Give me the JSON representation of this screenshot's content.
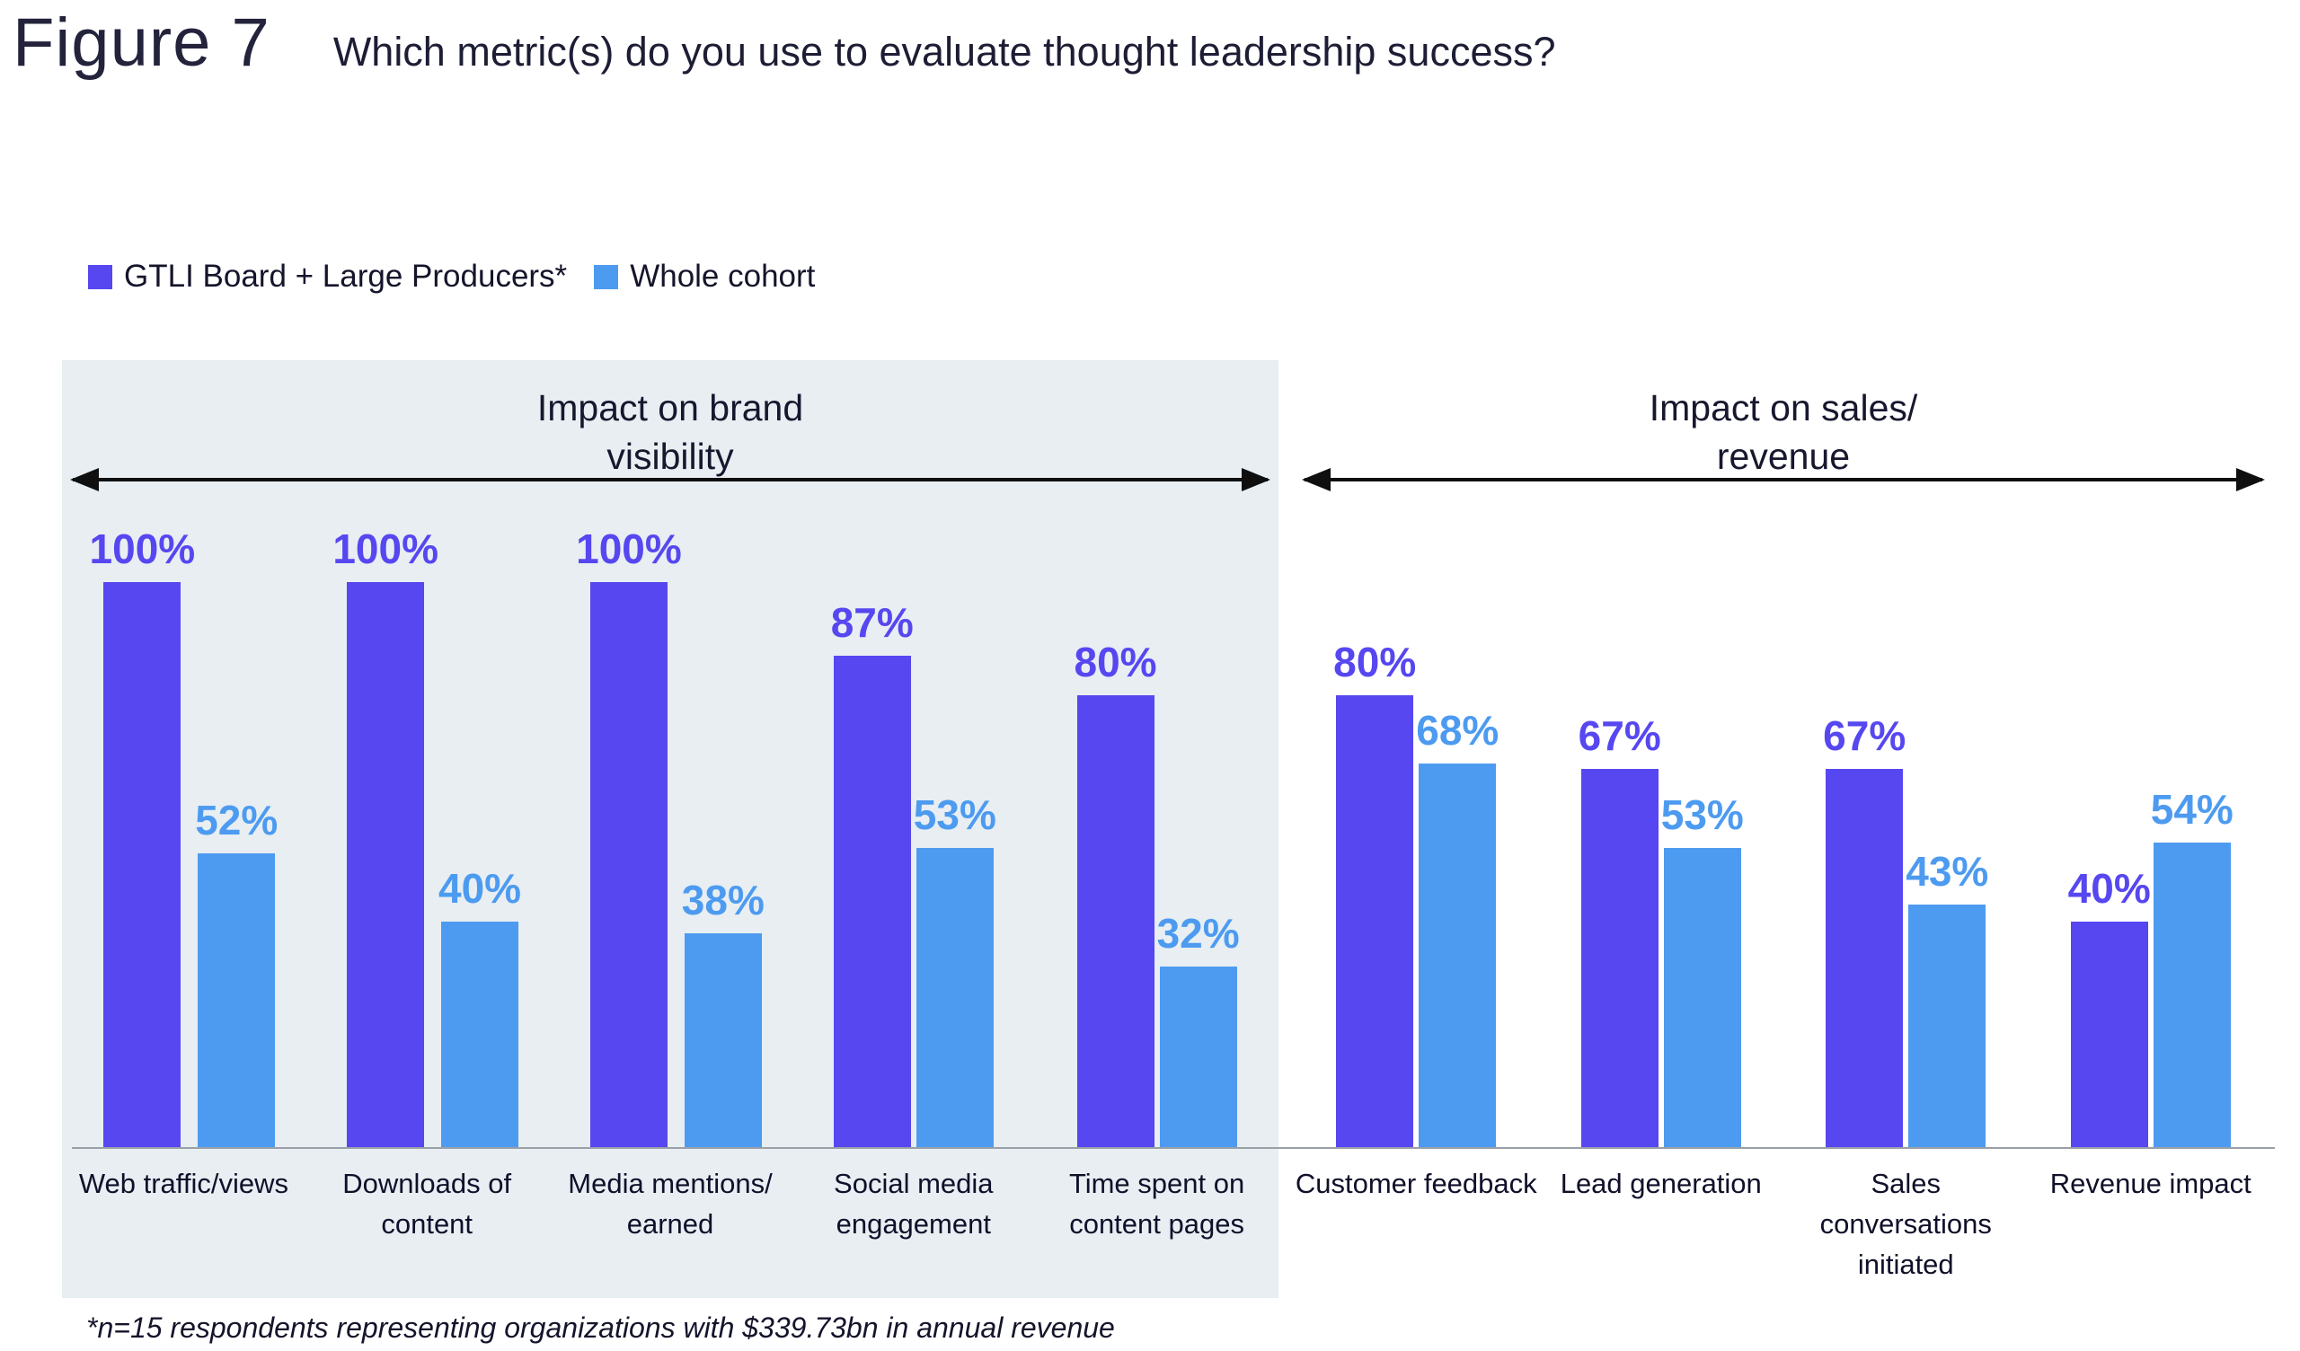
{
  "header": {
    "figure_label": "Figure 7",
    "title": "Which metric(s) do you use to evaluate thought leadership success?"
  },
  "legend": {
    "items": [
      {
        "label": "GTLI Board + Large Producers*",
        "color": "#5647F0"
      },
      {
        "label": "Whole cohort",
        "color": "#4D9BF0"
      }
    ]
  },
  "sections": [
    {
      "title": "Impact on brand\nvisibility",
      "groups": [
        {
          "category": "Web traffic/views",
          "board": {
            "label": "100%",
            "value": 100
          },
          "cohort": {
            "label": "52%",
            "value": 52
          }
        },
        {
          "category": "Downloads of\ncontent",
          "board": {
            "label": "100%",
            "value": 100
          },
          "cohort": {
            "label": "40%",
            "value": 40
          }
        },
        {
          "category": "Media mentions/\nearned",
          "board": {
            "label": "100%",
            "value": 100
          },
          "cohort": {
            "label": "38%",
            "value": 38
          }
        },
        {
          "category": "Social media\nengagement",
          "board": {
            "label": "87%",
            "value": 87
          },
          "cohort": {
            "label": "53%",
            "value": 53
          }
        },
        {
          "category": "Time spent on\ncontent pages",
          "board": {
            "label": "80%",
            "value": 80
          },
          "cohort": {
            "label": "32%",
            "value": 32
          }
        }
      ]
    },
    {
      "title": "Impact on sales/\nrevenue",
      "groups": [
        {
          "category": "Customer feedback",
          "board": {
            "label": "80%",
            "value": 80
          },
          "cohort": {
            "label": "68%",
            "value": 68
          }
        },
        {
          "category": "Lead generation",
          "board": {
            "label": "67%",
            "value": 67
          },
          "cohort": {
            "label": "53%",
            "value": 53
          }
        },
        {
          "category": "Sales conversations\ninitiated",
          "board": {
            "label": "67%",
            "value": 67
          },
          "cohort": {
            "label": "43%",
            "value": 43
          }
        },
        {
          "category": "Revenue impact",
          "board": {
            "label": "40%",
            "value": 40
          },
          "cohort": {
            "label": "54%",
            "value": 54
          }
        }
      ]
    }
  ],
  "footnote": "*n=15 respondents representing organizations with $339.73bn in annual revenue",
  "chart_data": {
    "type": "bar",
    "figure_label": "Figure 7",
    "title": "Which metric(s) do you use to evaluate thought leadership success?",
    "categories": [
      "Web traffic/views",
      "Downloads of content",
      "Media mentions/earned",
      "Social media engagement",
      "Time spent on content pages",
      "Customer feedback",
      "Lead generation",
      "Sales conversations initiated",
      "Revenue impact"
    ],
    "series": [
      {
        "name": "GTLI Board + Large Producers*",
        "color": "#5647F0",
        "values": [
          100,
          100,
          100,
          87,
          80,
          80,
          67,
          67,
          40
        ]
      },
      {
        "name": "Whole cohort",
        "color": "#4D9BF0",
        "values": [
          52,
          40,
          38,
          53,
          32,
          68,
          53,
          43,
          54
        ]
      }
    ],
    "sections": [
      {
        "label": "Impact on brand visibility",
        "category_range": [
          0,
          4
        ],
        "shaded_background": "#E8EEF2"
      },
      {
        "label": "Impact on sales/revenue",
        "category_range": [
          5,
          8
        ],
        "shaded_background": null
      }
    ],
    "ylim": [
      0,
      100
    ],
    "value_label_format": "{value}%",
    "grid": false,
    "legend_position": "top-left",
    "footnote": "*n=15 respondents representing organizations with $339.73bn in annual revenue"
  }
}
